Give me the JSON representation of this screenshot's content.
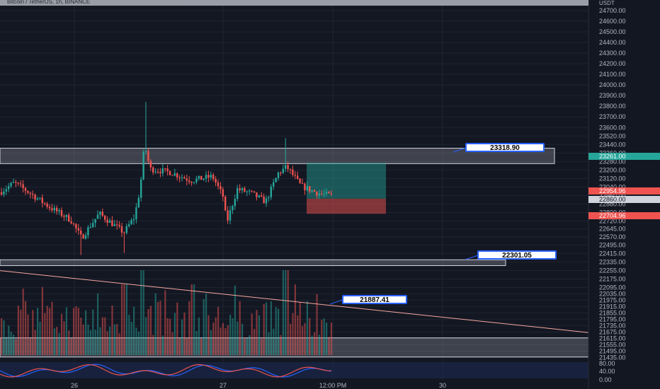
{
  "symbol_title": "Bitcoin / TetherUS, 1h, BINANCE",
  "currency": "USDT",
  "colors": {
    "background": "#131722",
    "up": "#26a69a",
    "down": "#ef5350",
    "zone": "#b2b5be",
    "label": "#2962ff",
    "trendline": "#f7a8a0",
    "stoch_k": "#2962ff",
    "stoch_d": "#ef5350"
  },
  "chart_data": {
    "type": "candlestick",
    "y_axis": {
      "range": [
        21425,
        24780
      ],
      "ticks": [
        "24700.00",
        "24600.00",
        "24500.00",
        "24400.00",
        "24300.00",
        "24200.00",
        "24100.00",
        "24000.00",
        "23900.00",
        "23800.00",
        "23700.00",
        "23600.00",
        "23520.00",
        "23440.00",
        "23360.00",
        "23280.00",
        "23200.00",
        "23120.00",
        "23040.00",
        "22960.00",
        "22880.00",
        "22800.00",
        "22720.00",
        "22645.00",
        "22570.00",
        "22495.00",
        "22415.00",
        "22335.00",
        "22255.00",
        "22175.00",
        "22095.00",
        "22035.00",
        "21975.00",
        "21915.00",
        "21855.00",
        "21795.00",
        "21735.00",
        "21675.00",
        "21615.00",
        "21555.00",
        "21495.00",
        "21435.00"
      ]
    },
    "x_axis": {
      "labels": [
        "26",
        "27",
        "12:00 PM",
        "30"
      ]
    },
    "price_badges": [
      {
        "value": "23261.00",
        "color": "#26a69a"
      },
      {
        "value": "22954.96",
        "color": "#ef5350"
      },
      {
        "value": "22860.00",
        "color": "#d1d4dc"
      },
      {
        "value": "22704.96",
        "color": "#ef5350"
      }
    ],
    "zones": [
      {
        "top": 23405,
        "bottom": 23260
      },
      {
        "top": 22355,
        "bottom": 22300
      },
      {
        "top": 21620,
        "bottom": 21440
      }
    ],
    "labels": [
      {
        "text": "23318.90",
        "price": 23318.9
      },
      {
        "text": "22301.05",
        "price": 22301.05
      },
      {
        "text": "21887.41",
        "price": 21887.41
      }
    ],
    "trendline": {
      "from": 22253,
      "to": 21670
    },
    "position": {
      "entry": 22930,
      "target": 23268,
      "stop": 22788
    },
    "last_price": 22955,
    "stoch_ticks": [
      "80.00",
      "40.00",
      "0.00"
    ],
    "volume": "",
    "oscillator": ""
  }
}
